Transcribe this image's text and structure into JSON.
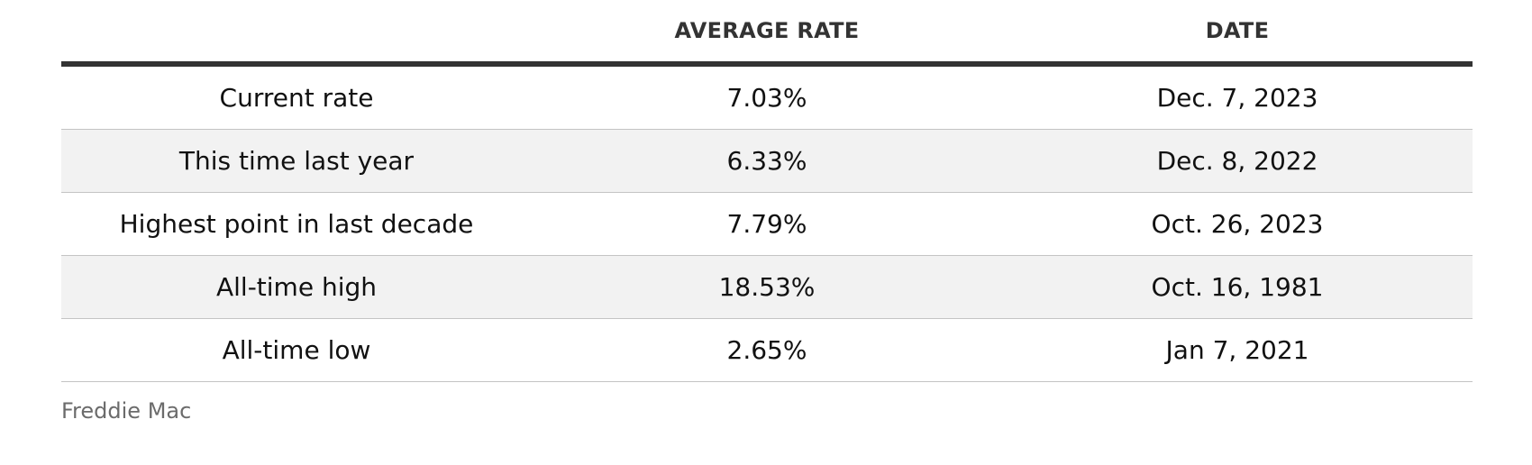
{
  "table": {
    "headers": [
      "",
      "AVERAGE RATE",
      "DATE"
    ],
    "rows": [
      {
        "label": "Current rate",
        "rate": "7.03%",
        "date": "Dec. 7, 2023"
      },
      {
        "label": "This time last year",
        "rate": "6.33%",
        "date": "Dec. 8, 2022"
      },
      {
        "label": "Highest point in last decade",
        "rate": "7.79%",
        "date": "Oct. 26, 2023"
      },
      {
        "label": "All-time high",
        "rate": "18.53%",
        "date": "Oct. 16, 1981"
      },
      {
        "label": "All-time low",
        "rate": "2.65%",
        "date": "Jan 7, 2021"
      }
    ],
    "source": "Freddie Mac"
  },
  "colors": {
    "header_rule": "#333333",
    "row_alt_bg": "#f2f2f2",
    "row_divider": "#c4c4c4",
    "source_text": "#6b6b6b"
  },
  "chart_data": {
    "type": "table",
    "columns": [
      "",
      "AVERAGE RATE",
      "DATE"
    ],
    "rows": [
      [
        "Current rate",
        "7.03%",
        "Dec. 7, 2023"
      ],
      [
        "This time last year",
        "6.33%",
        "Dec. 8, 2022"
      ],
      [
        "Highest point in last decade",
        "7.79%",
        "Oct. 26, 2023"
      ],
      [
        "All-time high",
        "18.53%",
        "Oct. 16, 1981"
      ],
      [
        "All-time low",
        "2.65%",
        "Jan 7, 2021"
      ]
    ],
    "source": "Freddie Mac"
  }
}
